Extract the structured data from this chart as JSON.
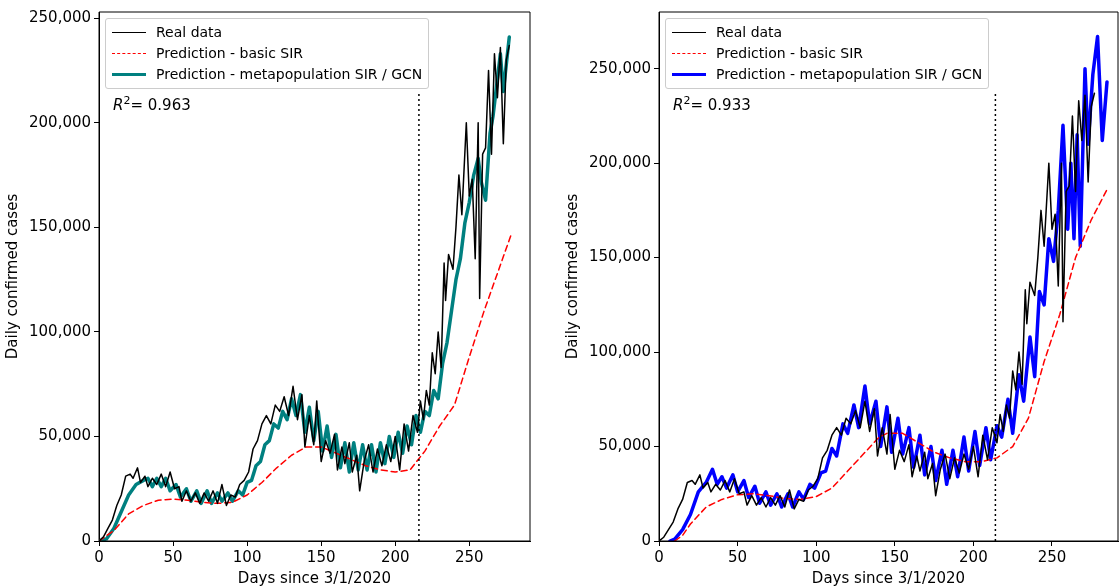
{
  "chart_data": [
    {
      "type": "line",
      "xlabel": "Days since 3/1/2020",
      "ylabel": "Daily confirmed cases",
      "xlim": [
        0,
        291
      ],
      "ylim": [
        0,
        253000
      ],
      "xticks": [
        0,
        50,
        100,
        150,
        200,
        250
      ],
      "yticks": [
        0,
        {
          "value": 50000,
          "label": "50,000"
        },
        {
          "value": 100000,
          "label": "100,000"
        },
        {
          "value": 150000,
          "label": "150,000"
        },
        {
          "value": 200000,
          "label": "200,000"
        },
        {
          "value": 250000,
          "label": "250,000"
        }
      ],
      "grid": false,
      "legend": "top left",
      "marker": "none",
      "annotations": [
        "R$^{2}$= 0.963"
      ],
      "ref_lines": [
        {
          "axis": "x",
          "value": 216,
          "color": "#000000",
          "line_style": "dotted"
        }
      ],
      "series": [
        {
          "name": "Real data",
          "color": "#000000",
          "line_style": "solid",
          "x": [
            0,
            3,
            6,
            9,
            12,
            15,
            18,
            21,
            23,
            26,
            28,
            31,
            33,
            36,
            39,
            42,
            45,
            48,
            51,
            54,
            56,
            59,
            62,
            65,
            68,
            71,
            74,
            77,
            80,
            83,
            86,
            89,
            92,
            95,
            98,
            101,
            104,
            107,
            110,
            113,
            116,
            119,
            122,
            125,
            128,
            131,
            134,
            137,
            139,
            142,
            145,
            147,
            150,
            153,
            156,
            159,
            161,
            164,
            166,
            169,
            171,
            174,
            176,
            179,
            182,
            185,
            188,
            191,
            194,
            197,
            200,
            203,
            206,
            209,
            212,
            215,
            217,
            219,
            221,
            223,
            225,
            227,
            229,
            231,
            233,
            234,
            236,
            239,
            241,
            243,
            245,
            248,
            250,
            252,
            254,
            256,
            257,
            259,
            261,
            263,
            265,
            267,
            269,
            271,
            273,
            275,
            277
          ],
          "values": [
            0,
            2000,
            6000,
            10000,
            17000,
            22000,
            31000,
            32000,
            30000,
            35000,
            28000,
            31000,
            26000,
            30000,
            27000,
            32000,
            26000,
            33000,
            25000,
            26000,
            19000,
            24000,
            19000,
            23000,
            18000,
            23000,
            19000,
            24000,
            18000,
            27000,
            17000,
            22000,
            21000,
            27000,
            29000,
            33000,
            44000,
            48000,
            56000,
            60000,
            56000,
            65000,
            62000,
            69000,
            60000,
            74000,
            58000,
            70000,
            45000,
            60000,
            46000,
            67000,
            38000,
            48000,
            42000,
            51000,
            34000,
            45000,
            37000,
            47000,
            33000,
            41000,
            24000,
            38000,
            46000,
            33000,
            44000,
            36000,
            46000,
            38000,
            50000,
            34000,
            56000,
            43000,
            60000,
            52000,
            67000,
            58000,
            72000,
            65000,
            90000,
            80000,
            100000,
            83000,
            133000,
            115000,
            137000,
            130000,
            150000,
            175000,
            156000,
            200000,
            165000,
            173000,
            135000,
            200000,
            116000,
            185000,
            188000,
            225000,
            185000,
            233000,
            212000,
            236000,
            190000,
            230000,
            237000
          ]
        },
        {
          "name": "Prediction - basic SIR",
          "color": "#ff0000",
          "line_style": "dashed",
          "x": [
            0,
            10,
            20,
            30,
            40,
            50,
            60,
            70,
            80,
            90,
            100,
            110,
            120,
            130,
            140,
            150,
            160,
            170,
            180,
            190,
            200,
            210,
            220,
            230,
            240,
            250,
            260,
            270,
            278
          ],
          "values": [
            0,
            5000,
            13000,
            17000,
            19500,
            20000,
            19500,
            18500,
            18000,
            18500,
            22000,
            28000,
            35000,
            41000,
            45000,
            45000,
            42000,
            39000,
            36000,
            34000,
            33000,
            34000,
            43000,
            55000,
            65000,
            88000,
            110000,
            130000,
            146000
          ]
        },
        {
          "name": "Prediction - metapopulation SIR / GCN",
          "color": "#008080",
          "line_style": "solid",
          "x": [
            0,
            5,
            10,
            15,
            20,
            25,
            30,
            33,
            36,
            39,
            42,
            45,
            48,
            52,
            55,
            59,
            62,
            66,
            69,
            73,
            76,
            80,
            83,
            87,
            90,
            94,
            97,
            100,
            103,
            106,
            109,
            112,
            115,
            118,
            121,
            124,
            127,
            130,
            133,
            136,
            139,
            142,
            145,
            148,
            151,
            154,
            157,
            160,
            163,
            166,
            169,
            172,
            175,
            178,
            181,
            184,
            187,
            190,
            193,
            196,
            199,
            202,
            205,
            208,
            211,
            214,
            217,
            220,
            223,
            226,
            229,
            232,
            235,
            238,
            241,
            244,
            247,
            250,
            253,
            256,
            258,
            261,
            264,
            266,
            268,
            271,
            273,
            277
          ],
          "values": [
            0,
            1000,
            6000,
            14000,
            22000,
            27000,
            29000,
            30000,
            26000,
            30000,
            26000,
            30000,
            24000,
            27000,
            21000,
            25000,
            19000,
            24000,
            18000,
            24000,
            18000,
            23000,
            19000,
            23000,
            19000,
            24000,
            22000,
            28000,
            29000,
            36000,
            38000,
            46000,
            48000,
            56000,
            54000,
            62000,
            58000,
            68000,
            60000,
            70000,
            52000,
            64000,
            48000,
            62000,
            43000,
            55000,
            40000,
            51000,
            35000,
            47000,
            33000,
            47000,
            34000,
            46000,
            34000,
            46000,
            33000,
            47000,
            37000,
            50000,
            40000,
            52000,
            42000,
            55000,
            46000,
            60000,
            52000,
            62000,
            60000,
            72000,
            68000,
            85000,
            95000,
            110000,
            125000,
            135000,
            152000,
            162000,
            175000,
            183000,
            172000,
            163000,
            195000,
            203000,
            215000,
            233000,
            215000,
            241000
          ]
        }
      ]
    },
    {
      "type": "line",
      "xlabel": "Days since 3/1/2020",
      "ylabel": "Daily confirmed cases",
      "xlim": [
        0,
        292
      ],
      "ylim": [
        0,
        280000
      ],
      "xticks": [
        0,
        50,
        100,
        150,
        200,
        250
      ],
      "yticks": [
        0,
        {
          "value": 50000,
          "label": "50,000"
        },
        {
          "value": 100000,
          "label": "100,000"
        },
        {
          "value": 150000,
          "label": "150,000"
        },
        {
          "value": 200000,
          "label": "200,000"
        },
        {
          "value": 250000,
          "label": "250,000"
        }
      ],
      "grid": false,
      "legend": "top left",
      "marker": "none",
      "annotations": [
        "R$^{2}$= 0.933"
      ],
      "ref_lines": [
        {
          "axis": "x",
          "value": 214,
          "color": "#000000",
          "line_style": "dotted"
        }
      ],
      "series": [
        {
          "name": "Real data",
          "color": "#000000",
          "line_style": "solid",
          "x": [
            0,
            3,
            6,
            9,
            12,
            15,
            18,
            21,
            23,
            26,
            28,
            31,
            33,
            36,
            39,
            42,
            45,
            48,
            51,
            54,
            56,
            59,
            62,
            65,
            68,
            71,
            74,
            77,
            80,
            83,
            86,
            89,
            92,
            95,
            98,
            101,
            104,
            107,
            110,
            113,
            116,
            119,
            122,
            125,
            128,
            131,
            134,
            137,
            139,
            142,
            145,
            147,
            150,
            153,
            156,
            159,
            161,
            164,
            166,
            169,
            171,
            174,
            176,
            179,
            182,
            185,
            188,
            191,
            194,
            197,
            200,
            203,
            206,
            209,
            212,
            215,
            217,
            219,
            221,
            223,
            225,
            227,
            229,
            231,
            233,
            234,
            236,
            239,
            241,
            243,
            245,
            248,
            250,
            252,
            254,
            256,
            257,
            259,
            261,
            263,
            265,
            267,
            269,
            271,
            273,
            275,
            277
          ],
          "values": [
            0,
            2000,
            6000,
            10000,
            17000,
            22000,
            31000,
            32000,
            30000,
            35000,
            28000,
            31000,
            26000,
            30000,
            27000,
            32000,
            26000,
            33000,
            25000,
            26000,
            19000,
            24000,
            19000,
            23000,
            18000,
            23000,
            19000,
            24000,
            18000,
            27000,
            17000,
            22000,
            21000,
            27000,
            29000,
            33000,
            44000,
            48000,
            56000,
            60000,
            56000,
            65000,
            62000,
            69000,
            60000,
            74000,
            58000,
            70000,
            45000,
            60000,
            46000,
            67000,
            38000,
            48000,
            42000,
            51000,
            34000,
            45000,
            37000,
            47000,
            33000,
            41000,
            24000,
            38000,
            46000,
            33000,
            44000,
            36000,
            46000,
            38000,
            50000,
            34000,
            56000,
            43000,
            60000,
            52000,
            67000,
            58000,
            72000,
            65000,
            90000,
            80000,
            100000,
            83000,
            133000,
            115000,
            137000,
            130000,
            150000,
            175000,
            156000,
            200000,
            165000,
            173000,
            135000,
            200000,
            116000,
            185000,
            188000,
            225000,
            185000,
            233000,
            212000,
            236000,
            190000,
            230000,
            237000
          ]
        },
        {
          "name": "Prediction - basic SIR",
          "color": "#ff0000",
          "line_style": "dashed",
          "x": [
            10,
            15,
            20,
            30,
            40,
            50,
            60,
            70,
            80,
            90,
            100,
            110,
            120,
            130,
            140,
            145,
            155,
            165,
            175,
            185,
            195,
            205,
            215,
            225,
            235,
            245,
            255,
            265,
            275,
            285
          ],
          "values": [
            0,
            3000,
            9000,
            18000,
            22000,
            24500,
            25000,
            24000,
            22500,
            22000,
            23500,
            28000,
            37000,
            46000,
            55000,
            57000,
            57000,
            52000,
            47000,
            44000,
            42000,
            42000,
            44000,
            50000,
            65000,
            95000,
            120000,
            150000,
            170000,
            186000
          ]
        },
        {
          "name": "Prediction - metapopulation SIR / GCN",
          "color": "#0000ff",
          "line_style": "solid",
          "x": [
            7,
            10,
            15,
            20,
            25,
            30,
            34,
            37,
            40,
            43,
            47,
            50,
            54,
            57,
            61,
            64,
            68,
            71,
            75,
            78,
            82,
            85,
            89,
            92,
            96,
            99,
            103,
            106,
            110,
            113,
            117,
            120,
            124,
            127,
            131,
            134,
            138,
            141,
            145,
            148,
            152,
            155,
            159,
            162,
            166,
            169,
            173,
            176,
            180,
            183,
            187,
            190,
            194,
            197,
            201,
            204,
            208,
            211,
            215,
            218,
            222,
            225,
            229,
            232,
            236,
            239,
            242,
            245,
            248,
            251,
            254,
            257,
            260,
            262,
            264,
            266,
            268,
            271,
            273,
            276,
            279,
            282,
            285
          ],
          "values": [
            0,
            1000,
            6000,
            14000,
            26000,
            31000,
            38000,
            30000,
            34000,
            28000,
            35000,
            26000,
            32000,
            23000,
            29000,
            20000,
            26000,
            19000,
            25000,
            18000,
            25000,
            18000,
            26000,
            22000,
            30000,
            28000,
            36000,
            37000,
            49000,
            45000,
            62000,
            57000,
            72000,
            60000,
            82000,
            62000,
            74000,
            50000,
            71000,
            47000,
            65000,
            46000,
            60000,
            39000,
            56000,
            35000,
            50000,
            32000,
            48000,
            30000,
            48000,
            34000,
            55000,
            37000,
            58000,
            40000,
            60000,
            43000,
            61000,
            55000,
            75000,
            57000,
            88000,
            74000,
            108000,
            87000,
            132000,
            125000,
            160000,
            148000,
            175000,
            220000,
            165000,
            200000,
            160000,
            215000,
            156000,
            250000,
            210000,
            247000,
            267000,
            212000,
            243000
          ]
        }
      ]
    }
  ]
}
